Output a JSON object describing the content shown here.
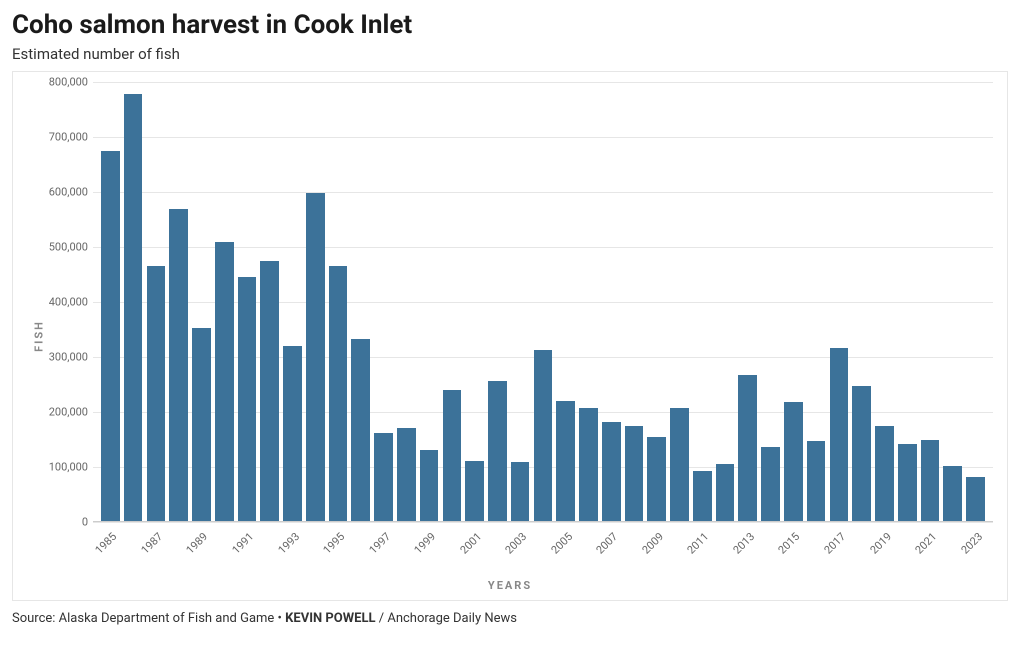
{
  "title": "Coho salmon harvest in Cook Inlet",
  "subtitle": "Estimated number of fish",
  "source_prefix": "Source: Alaska Department of Fish and Game • ",
  "source_credit": "KEVIN POWELL",
  "source_suffix": " / Anchorage Daily News",
  "axis": {
    "y_label": "FISH",
    "x_label": "YEARS"
  },
  "chart": {
    "type": "bar",
    "bar_color": "#3c7299",
    "grid_color": "#e6e6e6",
    "background_color": "#ffffff",
    "title_fontsize": 26,
    "subtitle_fontsize": 15,
    "tick_fontsize": 11,
    "font_family": "sans-serif",
    "ylim": [
      0,
      800000
    ],
    "ytick_step": 100000,
    "y_ticks": [
      0,
      100000,
      200000,
      300000,
      400000,
      500000,
      600000,
      700000,
      800000
    ],
    "years": [
      1985,
      1986,
      1987,
      1988,
      1989,
      1990,
      1991,
      1992,
      1993,
      1994,
      1995,
      1996,
      1997,
      1998,
      1999,
      2000,
      2001,
      2002,
      2003,
      2004,
      2005,
      2006,
      2007,
      2008,
      2009,
      2010,
      2011,
      2012,
      2013,
      2014,
      2015,
      2016,
      2017,
      2018,
      2019,
      2020,
      2021,
      2022,
      2023
    ],
    "x_tick_show": [
      1985,
      1987,
      1989,
      1991,
      1993,
      1995,
      1997,
      1999,
      2001,
      2003,
      2005,
      2007,
      2009,
      2011,
      2013,
      2015,
      2017,
      2019,
      2021,
      2023
    ],
    "values": [
      675000,
      778000,
      465000,
      570000,
      353000,
      510000,
      446000,
      475000,
      320000,
      598000,
      465000,
      334000,
      163000,
      172000,
      132000,
      241000,
      112000,
      256000,
      109000,
      313000,
      220000,
      208000,
      183000,
      175000,
      155000,
      208000,
      94000,
      106000,
      267000,
      136000,
      219000,
      147000,
      316000,
      247000,
      175000,
      142000,
      150000,
      102000,
      82000
    ]
  }
}
